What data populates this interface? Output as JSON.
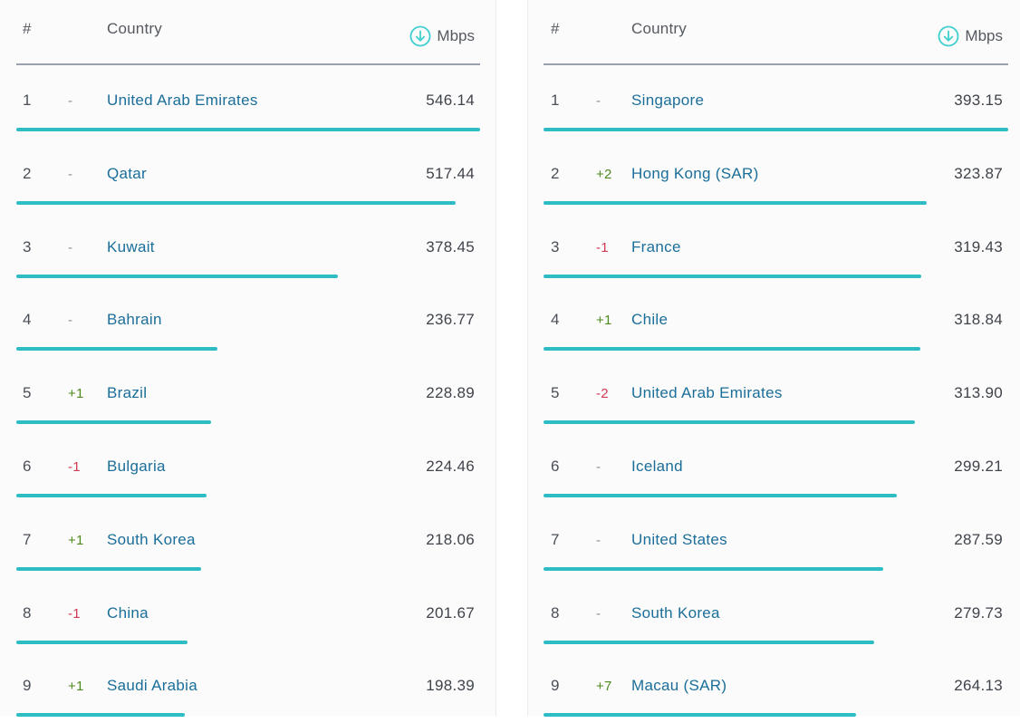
{
  "columns": {
    "rank": "#",
    "country": "Country",
    "unit": "Mbps",
    "unit_icon": "download-arrow-circle-icon"
  },
  "colors": {
    "bar": "#2ebdc5",
    "country_link": "#1b6e99",
    "change_up": "#4f8a1e",
    "change_down": "#d13a55",
    "change_same": "#8a8f96"
  },
  "tables": [
    {
      "name": "left",
      "rows": [
        {
          "rank": "1",
          "change": "-",
          "country": "United Arab Emirates",
          "speed": "546.14"
        },
        {
          "rank": "2",
          "change": "-",
          "country": "Qatar",
          "speed": "517.44"
        },
        {
          "rank": "3",
          "change": "-",
          "country": "Kuwait",
          "speed": "378.45"
        },
        {
          "rank": "4",
          "change": "-",
          "country": "Bahrain",
          "speed": "236.77"
        },
        {
          "rank": "5",
          "change": "+1",
          "country": "Brazil",
          "speed": "228.89"
        },
        {
          "rank": "6",
          "change": "-1",
          "country": "Bulgaria",
          "speed": "224.46"
        },
        {
          "rank": "7",
          "change": "+1",
          "country": "South Korea",
          "speed": "218.06"
        },
        {
          "rank": "8",
          "change": "-1",
          "country": "China",
          "speed": "201.67"
        },
        {
          "rank": "9",
          "change": "+1",
          "country": "Saudi Arabia",
          "speed": "198.39"
        }
      ]
    },
    {
      "name": "right",
      "rows": [
        {
          "rank": "1",
          "change": "-",
          "country": "Singapore",
          "speed": "393.15"
        },
        {
          "rank": "2",
          "change": "+2",
          "country": "Hong Kong (SAR)",
          "speed": "323.87"
        },
        {
          "rank": "3",
          "change": "-1",
          "country": "France",
          "speed": "319.43"
        },
        {
          "rank": "4",
          "change": "+1",
          "country": "Chile",
          "speed": "318.84"
        },
        {
          "rank": "5",
          "change": "-2",
          "country": "United Arab Emirates",
          "speed": "313.90"
        },
        {
          "rank": "6",
          "change": "-",
          "country": "Iceland",
          "speed": "299.21"
        },
        {
          "rank": "7",
          "change": "-",
          "country": "United States",
          "speed": "287.59"
        },
        {
          "rank": "8",
          "change": "-",
          "country": "South Korea",
          "speed": "279.73"
        },
        {
          "rank": "9",
          "change": "+7",
          "country": "Macau (SAR)",
          "speed": "264.13"
        }
      ]
    }
  ]
}
